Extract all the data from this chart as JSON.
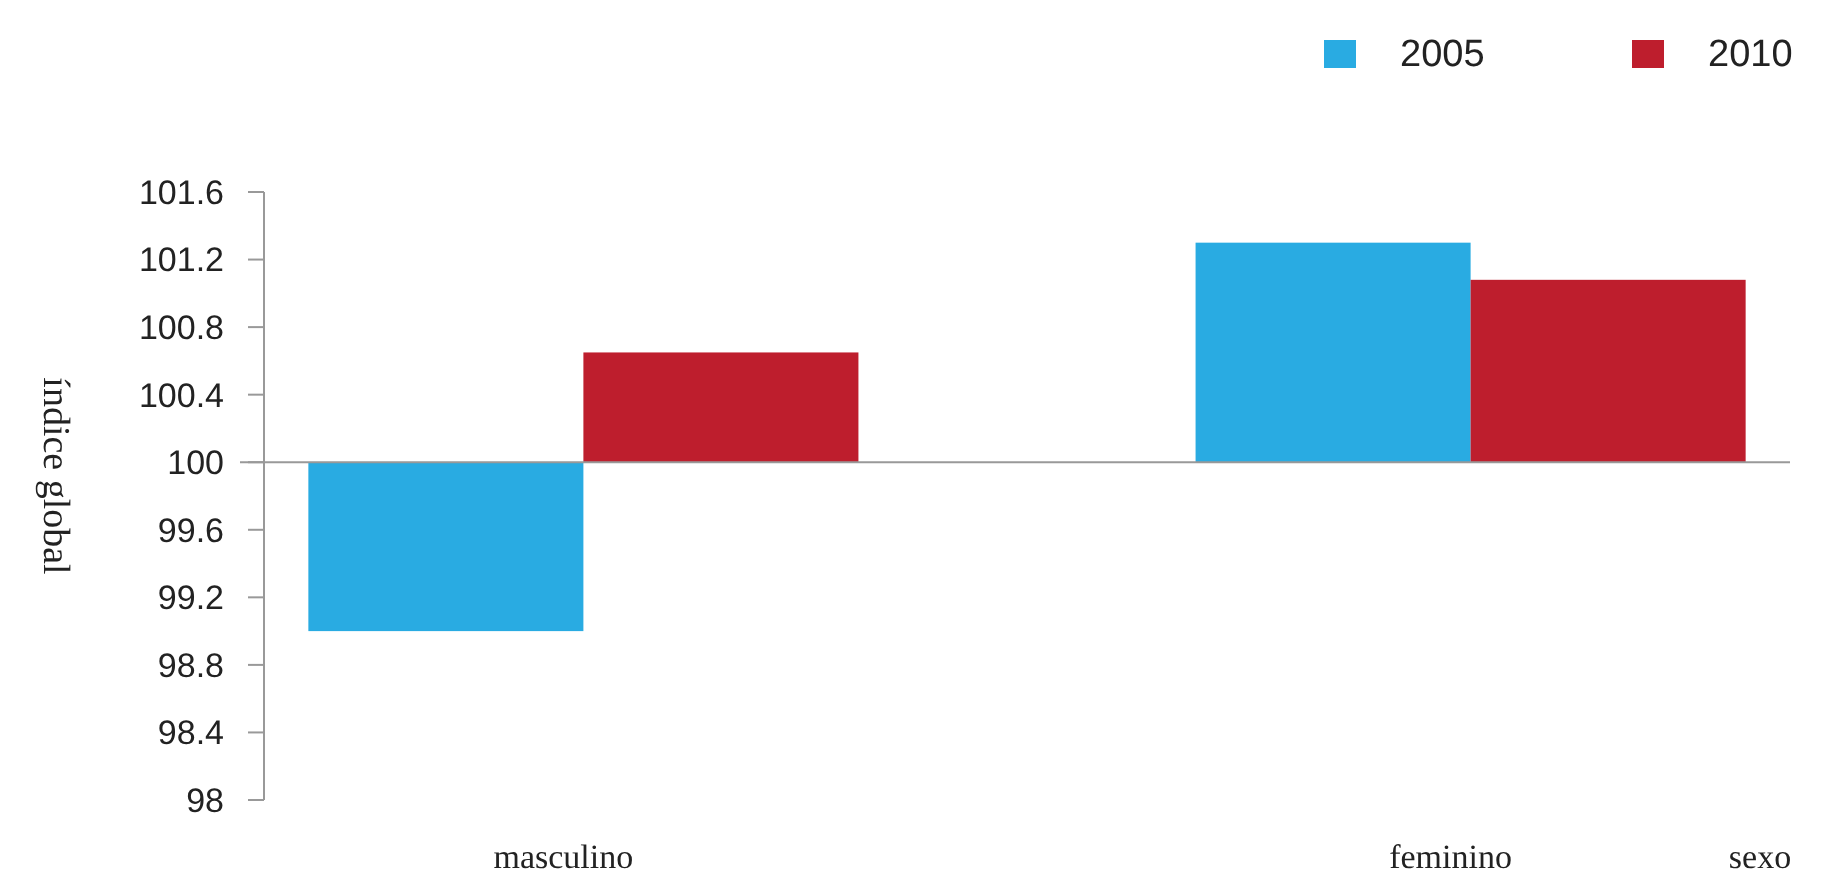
{
  "chart_data": {
    "type": "bar",
    "xlabel": "sexo",
    "ylabel": "índice global",
    "categories": [
      "masculino",
      "feminino"
    ],
    "series": [
      {
        "name": "2005",
        "color": "#29abe2",
        "base": [
          100,
          100
        ],
        "values": [
          -1.0,
          1.3
        ]
      },
      {
        "name": "2010",
        "color": "#be1e2d",
        "base": [
          100,
          100
        ],
        "values": [
          0.65,
          1.08
        ]
      }
    ],
    "ylim": [
      98,
      101.6
    ],
    "yticks": [
      98,
      98.4,
      98.8,
      99.2,
      99.6,
      100,
      100.4,
      100.8,
      101.2,
      101.6
    ],
    "legend": "top right"
  }
}
